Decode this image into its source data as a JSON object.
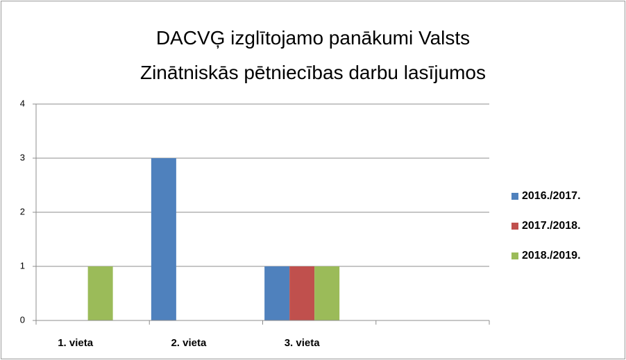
{
  "chart_data": {
    "type": "bar",
    "title": "DACVĢ izglītojamo panākumi Valsts Zinātniskās pētniecības darbu lasījumos",
    "categories": [
      "1. vieta",
      "2. vieta",
      "3. vieta",
      null
    ],
    "series": [
      {
        "name": "2016./2017.",
        "color": "#4f81bd",
        "values": [
          0,
          3,
          1,
          null
        ]
      },
      {
        "name": "2017./2018.",
        "color": "#c0504d",
        "values": [
          0,
          0,
          1,
          null
        ]
      },
      {
        "name": "2018./2019.",
        "color": "#9bbb59",
        "values": [
          1,
          0,
          1,
          null
        ]
      }
    ],
    "ylim": [
      0,
      4
    ],
    "yticks": [
      0,
      1,
      2,
      3,
      4
    ],
    "grid": true,
    "legend": "right"
  }
}
